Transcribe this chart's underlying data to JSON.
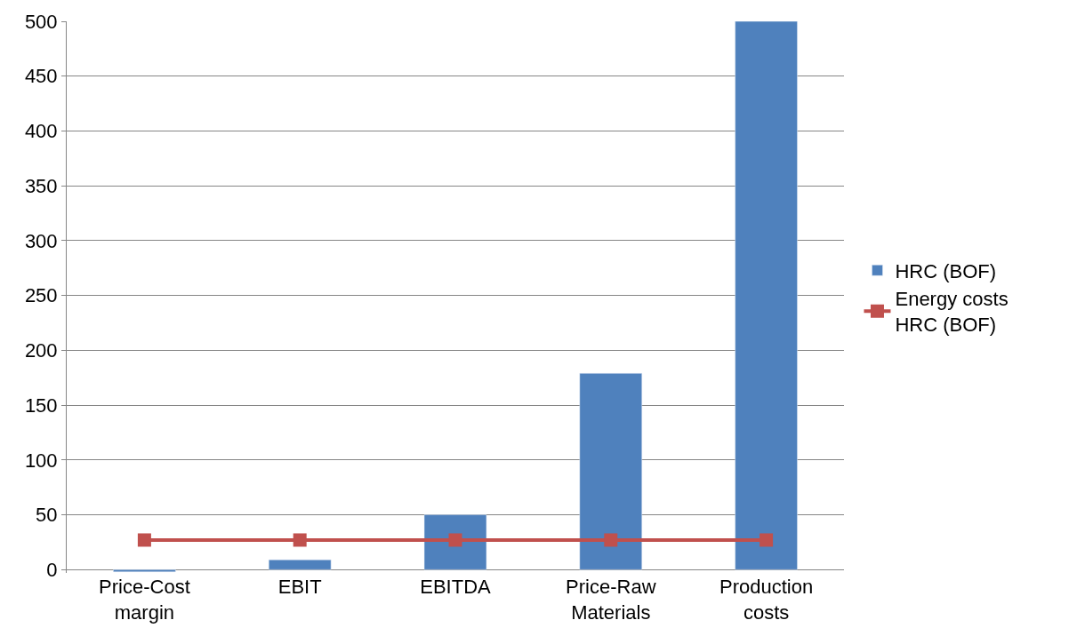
{
  "chart_data": {
    "type": "bar",
    "categories": [
      "Price-Cost margin",
      "EBIT",
      "EBITDA",
      "Price-Raw Materials",
      "Production costs"
    ],
    "series": [
      {
        "name": "HRC (BOF)",
        "color": "#4f81bd",
        "values": [
          -2,
          9,
          50,
          179,
          500
        ]
      },
      {
        "name": "Energy costs HRC (BOF)",
        "color": "#c0504d",
        "type": "line",
        "marker": "square",
        "values": [
          27,
          27,
          27,
          27,
          27
        ]
      }
    ],
    "ylim": [
      -3,
      500
    ],
    "yticks": [
      0,
      50,
      100,
      150,
      200,
      250,
      300,
      350,
      400,
      450,
      500
    ],
    "grid": "y",
    "legend": "right"
  }
}
